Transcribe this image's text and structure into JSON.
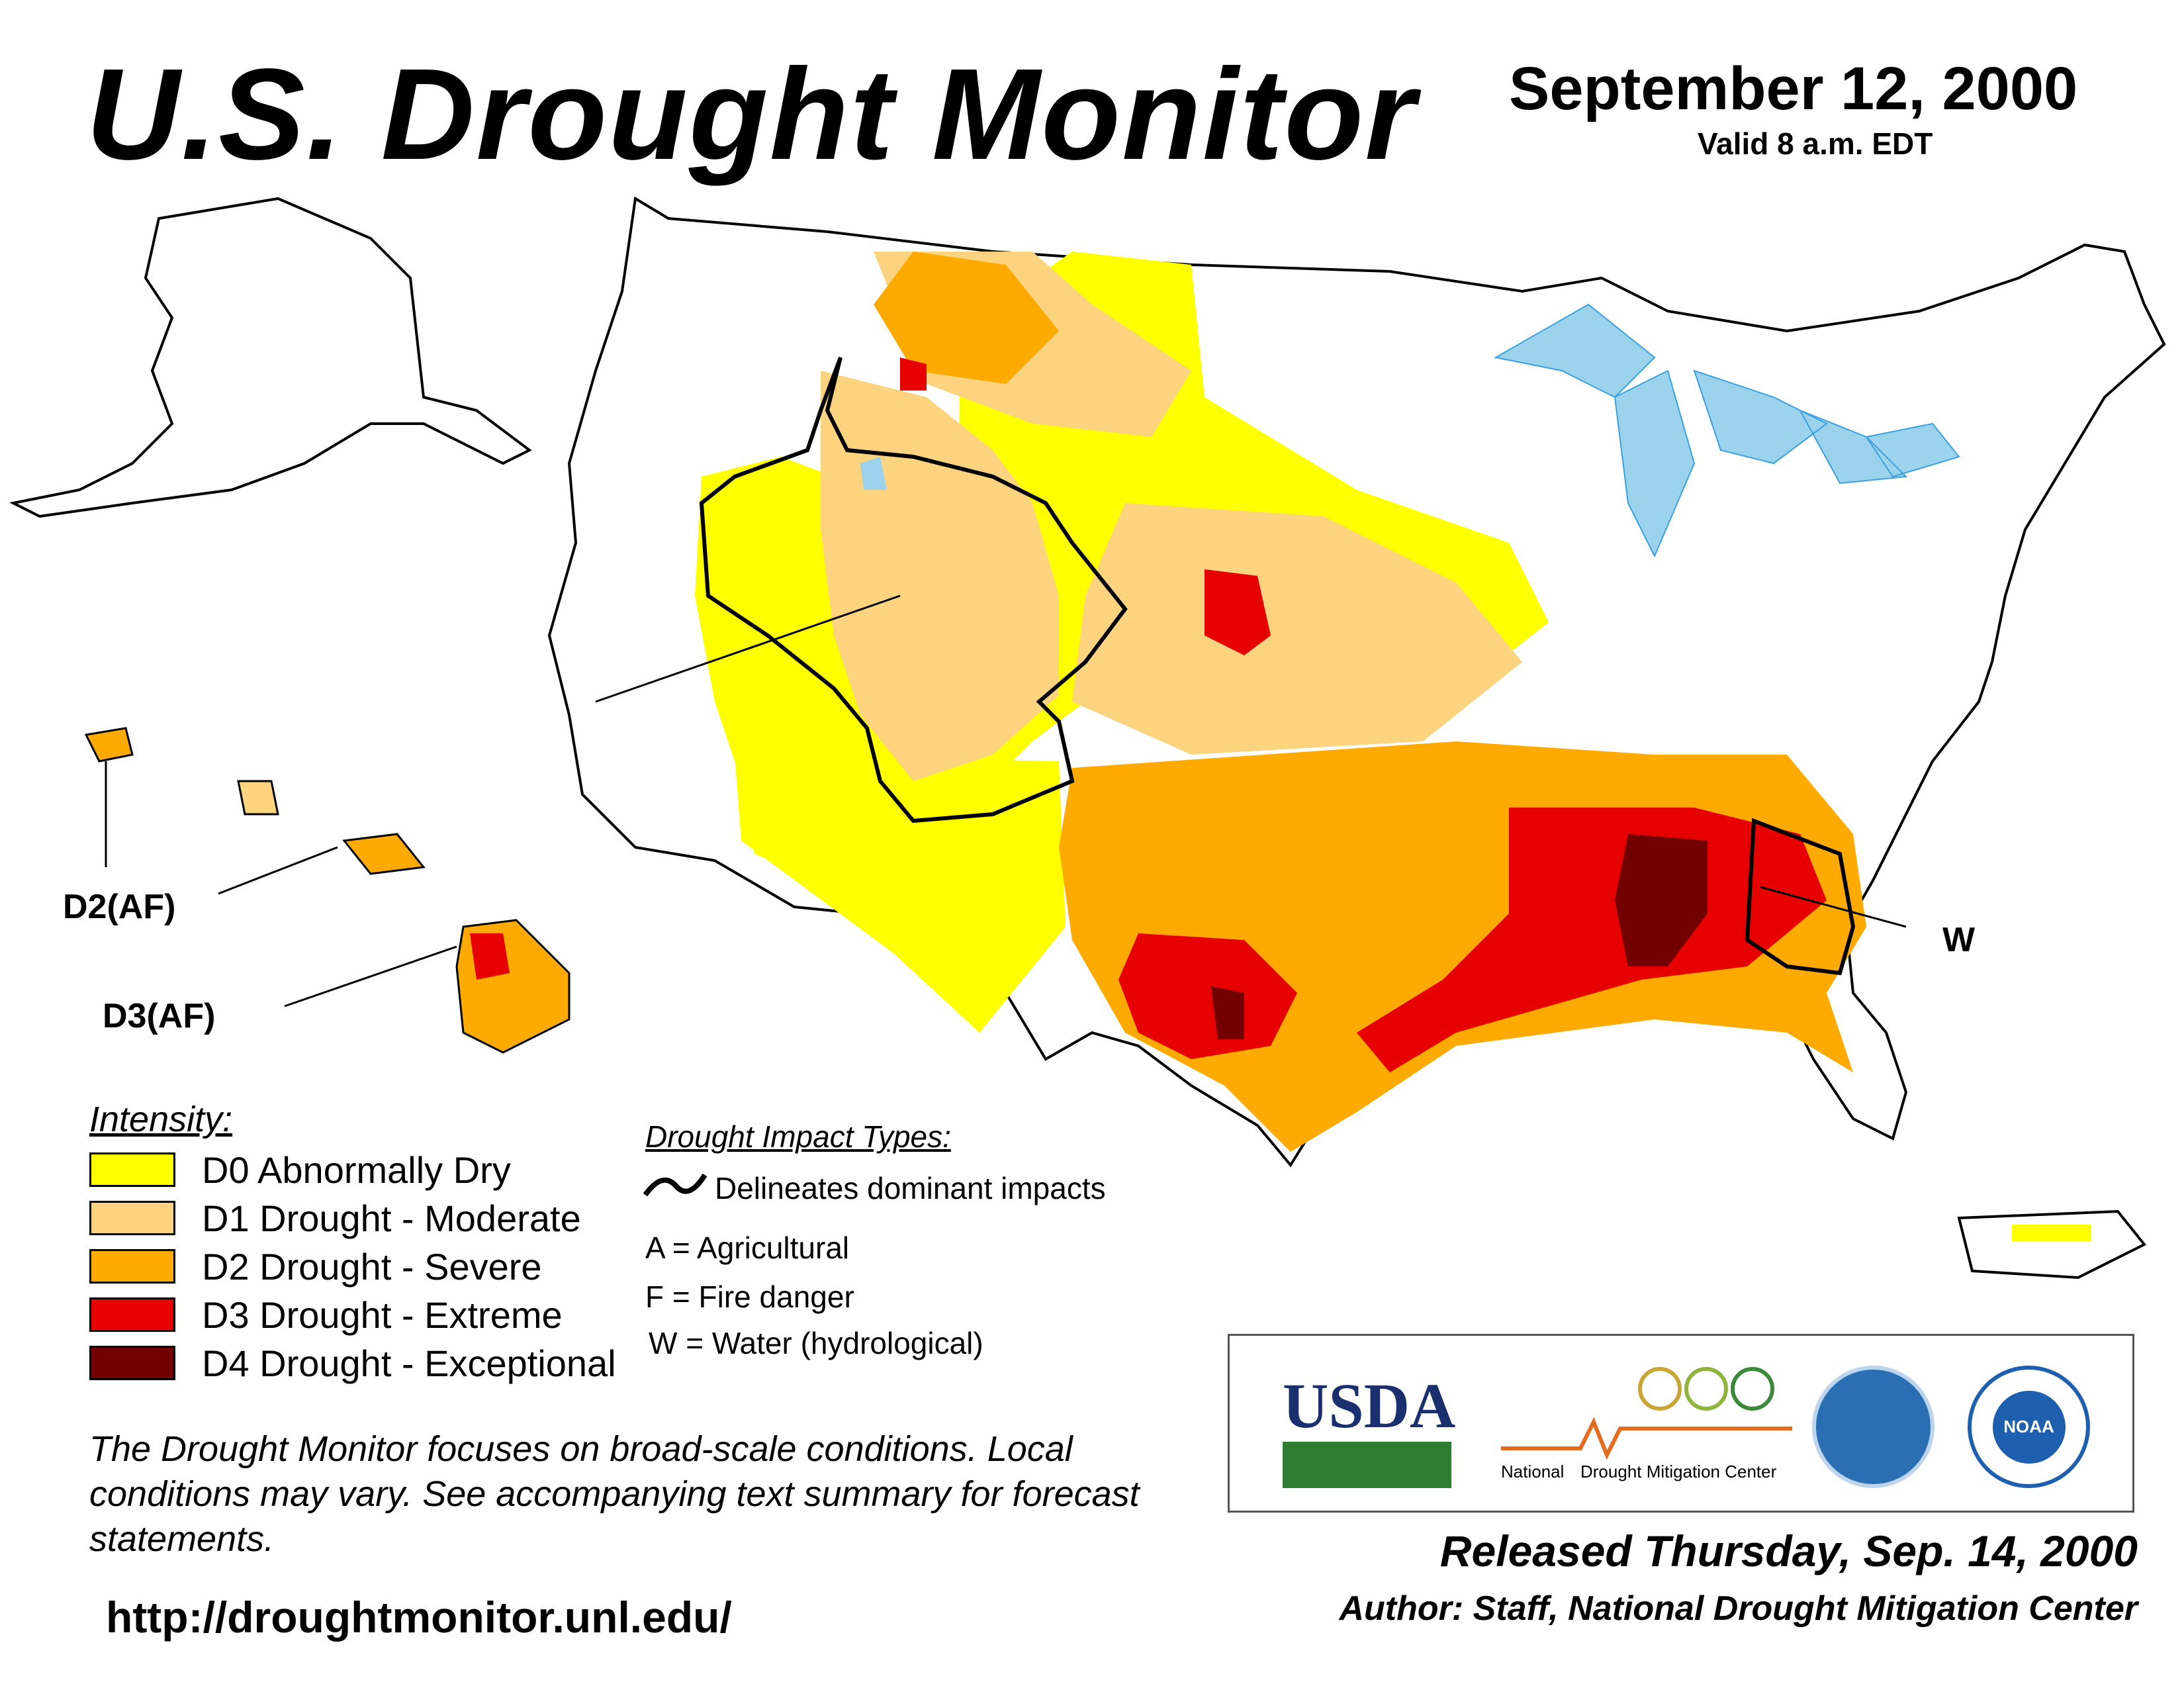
{
  "header": {
    "title": "U.S. Drought Monitor",
    "date": "September 12, 2000",
    "valid": "Valid 8 a.m. EDT"
  },
  "map_labels": {
    "d2_af": "D2(AF)",
    "d3_af": "D3(AF)",
    "w": "W"
  },
  "legend": {
    "title": "Intensity:",
    "items": [
      {
        "label": "D0 Abnormally Dry",
        "color": "#ffff00"
      },
      {
        "label": "D1 Drought - Moderate",
        "color": "#fcd37f"
      },
      {
        "label": "D2 Drought - Severe",
        "color": "#ffaa00"
      },
      {
        "label": "D3 Drought - Extreme",
        "color": "#e60000"
      },
      {
        "label": "D4 Drought - Exceptional",
        "color": "#730000"
      }
    ]
  },
  "impacts": {
    "title": "Drought Impact Types:",
    "delineates": "Delineates dominant impacts",
    "a": "A = Agricultural",
    "f": "F = Fire danger",
    "w": "W = Water (hydrological)"
  },
  "note": "The Drought Monitor focuses on broad-scale conditions. Local conditions may vary. See accompanying text summary for forecast statements.",
  "url": "http://droughtmonitor.unl.edu/",
  "footer": {
    "released": "Released Thursday, Sep. 14, 2000",
    "author": "Author: Staff, National Drought Mitigation Center"
  },
  "logos": {
    "usda": "USDA",
    "ndmc_left": "National",
    "ndmc_right": "Drought Mitigation Center",
    "commerce": "commerce-seal",
    "noaa": "NOAA"
  },
  "colors": {
    "water": "#9cd3ec",
    "river": "#3aa0e0",
    "boundary": "#9a9a9a",
    "state": "#000000"
  }
}
